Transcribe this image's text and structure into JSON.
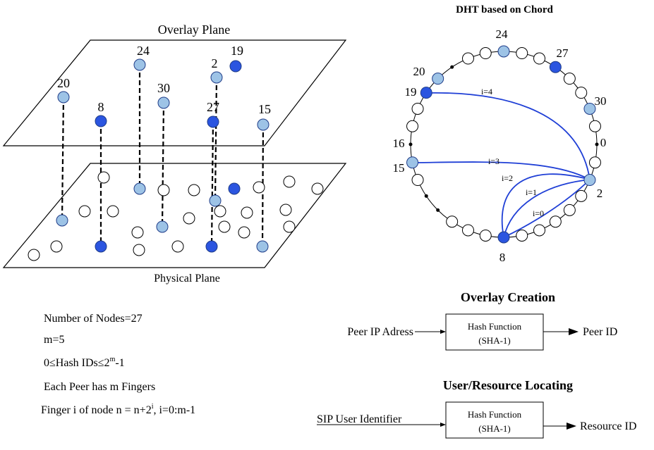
{
  "overlay_plane": {
    "label": "Overlay Plane",
    "nodes": [
      20,
      8,
      24,
      30,
      2,
      19,
      27,
      15
    ]
  },
  "physical_plane": {
    "label": "Physical Plane"
  },
  "chord": {
    "title": "DHT based on Chord",
    "node_labels": [
      24,
      27,
      30,
      0,
      2,
      8,
      15,
      16,
      19,
      20
    ],
    "finger_labels": [
      "i=4",
      "i=3",
      "i=2",
      "i=1",
      "i=0"
    ]
  },
  "overlay_creation": {
    "title": "Overlay Creation",
    "input": "Peer IP Adress",
    "box": [
      "Hash Function",
      "(SHA-1)"
    ],
    "output": "Peer ID"
  },
  "resource_locating": {
    "title": "User/Resource Locating",
    "input": "SIP User Identifier",
    "box": [
      "Hash Function",
      "(SHA-1)"
    ],
    "output": "Resource ID"
  },
  "notes": [
    [
      "Number of Nodes=27"
    ],
    [
      "m=5"
    ],
    [
      "0≤Hash IDs≤2",
      "m",
      "-1"
    ],
    [
      "Each Peer has m Fingers"
    ],
    [
      "Finger i of node n = n+2",
      "i",
      ", i=0:m-1"
    ]
  ]
}
